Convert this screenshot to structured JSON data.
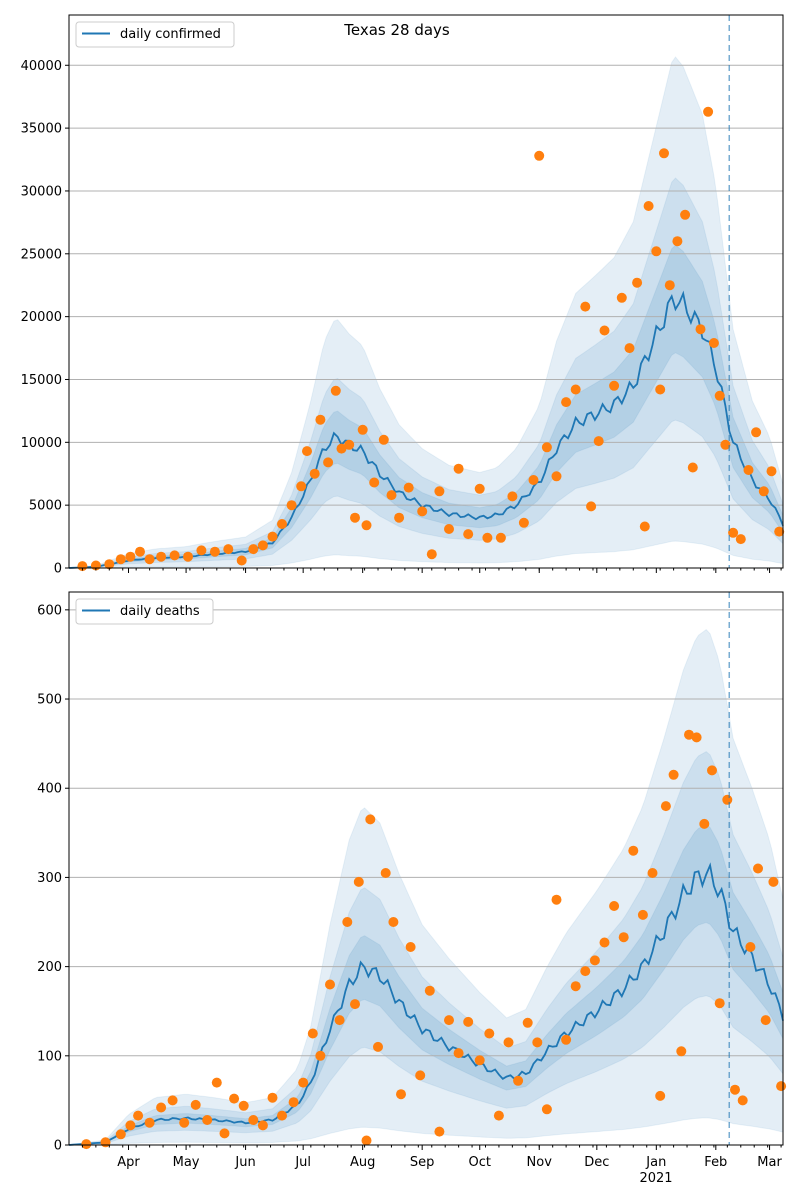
{
  "figure": {
    "title": "Texas 28 days",
    "x_year_label": "2021"
  },
  "chart_data": [
    {
      "type": "line",
      "title": "Texas 28 days",
      "xlabel": "",
      "ylabel": "",
      "xlim": [
        "2020-03-01",
        "2021-03-08"
      ],
      "ylim": [
        0,
        44000
      ],
      "yticks": [
        0,
        5000,
        10000,
        15000,
        20000,
        25000,
        30000,
        35000,
        40000
      ],
      "grid": "horizontal",
      "legend": "top-left",
      "vline_date": "2021-02-08",
      "colors": {
        "line": "#1f77b4",
        "points": "#ff7f0e",
        "band": "#1f77b4",
        "grid": "#b0b0b0"
      },
      "series": [
        {
          "name": "daily confirmed",
          "points": [
            [
              "2020-03-01",
              0
            ],
            [
              "2020-03-15",
              100
            ],
            [
              "2020-04-01",
              600
            ],
            [
              "2020-04-15",
              800
            ],
            [
              "2020-05-01",
              900
            ],
            [
              "2020-05-15",
              1100
            ],
            [
              "2020-06-01",
              1300
            ],
            [
              "2020-06-15",
              2000
            ],
            [
              "2020-06-25",
              4000
            ],
            [
              "2020-07-05",
              7000
            ],
            [
              "2020-07-12",
              9500
            ],
            [
              "2020-07-18",
              10500
            ],
            [
              "2020-07-25",
              9800
            ],
            [
              "2020-08-01",
              9300
            ],
            [
              "2020-08-10",
              7500
            ],
            [
              "2020-08-20",
              6000
            ],
            [
              "2020-09-01",
              5000
            ],
            [
              "2020-09-15",
              4300
            ],
            [
              "2020-10-01",
              4000
            ],
            [
              "2020-10-10",
              4200
            ],
            [
              "2020-10-20",
              5000
            ],
            [
              "2020-11-01",
              6800
            ],
            [
              "2020-11-10",
              9500
            ],
            [
              "2020-11-20",
              11500
            ],
            [
              "2020-12-01",
              12300
            ],
            [
              "2020-12-10",
              13000
            ],
            [
              "2020-12-20",
              14500
            ],
            [
              "2021-01-01",
              18500
            ],
            [
              "2021-01-10",
              21500
            ],
            [
              "2021-01-15",
              21000
            ],
            [
              "2021-01-25",
              19000
            ],
            [
              "2021-02-01",
              16000
            ],
            [
              "2021-02-10",
              10000
            ],
            [
              "2021-02-20",
              7000
            ],
            [
              "2021-03-01",
              5500
            ],
            [
              "2021-03-08",
              3500
            ]
          ],
          "band_scale_inner": 0.2,
          "band_scale_mid": 0.45,
          "band_scale_outer": 0.9
        }
      ],
      "scatter": [
        [
          "2020-03-08",
          150
        ],
        [
          "2020-03-15",
          200
        ],
        [
          "2020-03-22",
          300
        ],
        [
          "2020-03-28",
          700
        ],
        [
          "2020-04-02",
          900
        ],
        [
          "2020-04-07",
          1300
        ],
        [
          "2020-04-12",
          700
        ],
        [
          "2020-04-18",
          900
        ],
        [
          "2020-04-25",
          1000
        ],
        [
          "2020-05-02",
          900
        ],
        [
          "2020-05-09",
          1400
        ],
        [
          "2020-05-16",
          1300
        ],
        [
          "2020-05-23",
          1500
        ],
        [
          "2020-05-30",
          600
        ],
        [
          "2020-06-05",
          1500
        ],
        [
          "2020-06-10",
          1800
        ],
        [
          "2020-06-15",
          2500
        ],
        [
          "2020-06-20",
          3500
        ],
        [
          "2020-06-25",
          5000
        ],
        [
          "2020-06-30",
          6500
        ],
        [
          "2020-07-03",
          9300
        ],
        [
          "2020-07-07",
          7500
        ],
        [
          "2020-07-10",
          11800
        ],
        [
          "2020-07-14",
          8400
        ],
        [
          "2020-07-18",
          14100
        ],
        [
          "2020-07-21",
          9500
        ],
        [
          "2020-07-25",
          9800
        ],
        [
          "2020-07-28",
          4000
        ],
        [
          "2020-08-01",
          11000
        ],
        [
          "2020-08-03",
          3400
        ],
        [
          "2020-08-07",
          6800
        ],
        [
          "2020-08-12",
          10200
        ],
        [
          "2020-08-16",
          5800
        ],
        [
          "2020-08-20",
          4000
        ],
        [
          "2020-08-25",
          6400
        ],
        [
          "2020-09-01",
          4500
        ],
        [
          "2020-09-06",
          1100
        ],
        [
          "2020-09-10",
          6100
        ],
        [
          "2020-09-15",
          3100
        ],
        [
          "2020-09-20",
          7900
        ],
        [
          "2020-09-25",
          2700
        ],
        [
          "2020-10-01",
          6300
        ],
        [
          "2020-10-05",
          2400
        ],
        [
          "2020-10-12",
          2400
        ],
        [
          "2020-10-18",
          5700
        ],
        [
          "2020-10-24",
          3600
        ],
        [
          "2020-10-29",
          7000
        ],
        [
          "2020-11-01",
          32800
        ],
        [
          "2020-11-05",
          9600
        ],
        [
          "2020-11-10",
          7300
        ],
        [
          "2020-11-15",
          13200
        ],
        [
          "2020-11-20",
          14200
        ],
        [
          "2020-11-25",
          20800
        ],
        [
          "2020-11-28",
          4900
        ],
        [
          "2020-12-02",
          10100
        ],
        [
          "2020-12-05",
          18900
        ],
        [
          "2020-12-10",
          14500
        ],
        [
          "2020-12-14",
          21500
        ],
        [
          "2020-12-18",
          17500
        ],
        [
          "2020-12-22",
          22700
        ],
        [
          "2020-12-26",
          3300
        ],
        [
          "2020-12-28",
          28800
        ],
        [
          "2021-01-01",
          25200
        ],
        [
          "2021-01-03",
          14200
        ],
        [
          "2021-01-05",
          33000
        ],
        [
          "2021-01-08",
          22500
        ],
        [
          "2021-01-12",
          26000
        ],
        [
          "2021-01-16",
          28100
        ],
        [
          "2021-01-20",
          8000
        ],
        [
          "2021-01-24",
          19000
        ],
        [
          "2021-01-28",
          36300
        ],
        [
          "2021-01-31",
          17900
        ],
        [
          "2021-02-03",
          13700
        ],
        [
          "2021-02-06",
          9800
        ],
        [
          "2021-02-10",
          2800
        ],
        [
          "2021-02-14",
          2300
        ],
        [
          "2021-02-18",
          7800
        ],
        [
          "2021-02-22",
          10800
        ],
        [
          "2021-02-26",
          6100
        ],
        [
          "2021-03-02",
          7700
        ],
        [
          "2021-03-06",
          2900
        ]
      ]
    },
    {
      "type": "line",
      "title": "",
      "xlabel": "",
      "ylabel": "",
      "xlim": [
        "2020-03-01",
        "2021-03-08"
      ],
      "ylim": [
        0,
        620
      ],
      "yticks": [
        0,
        100,
        200,
        300,
        400,
        500,
        600
      ],
      "grid": "horizontal",
      "legend": "top-left",
      "vline_date": "2021-02-08",
      "colors": {
        "line": "#1f77b4",
        "points": "#ff7f0e",
        "band": "#1f77b4",
        "grid": "#b0b0b0"
      },
      "series": [
        {
          "name": "daily deaths",
          "points": [
            [
              "2020-03-01",
              0
            ],
            [
              "2020-03-20",
              3
            ],
            [
              "2020-04-01",
              18
            ],
            [
              "2020-04-15",
              28
            ],
            [
              "2020-05-01",
              30
            ],
            [
              "2020-05-15",
              28
            ],
            [
              "2020-06-01",
              25
            ],
            [
              "2020-06-15",
              28
            ],
            [
              "2020-06-28",
              45
            ],
            [
              "2020-07-05",
              70
            ],
            [
              "2020-07-15",
              130
            ],
            [
              "2020-07-25",
              180
            ],
            [
              "2020-08-01",
              200
            ],
            [
              "2020-08-10",
              190
            ],
            [
              "2020-08-20",
              160
            ],
            [
              "2020-09-01",
              130
            ],
            [
              "2020-09-15",
              110
            ],
            [
              "2020-10-01",
              90
            ],
            [
              "2020-10-15",
              75
            ],
            [
              "2020-10-25",
              80
            ],
            [
              "2020-11-05",
              105
            ],
            [
              "2020-11-15",
              125
            ],
            [
              "2020-12-01",
              150
            ],
            [
              "2020-12-15",
              175
            ],
            [
              "2020-12-25",
              200
            ],
            [
              "2021-01-05",
              240
            ],
            [
              "2021-01-15",
              280
            ],
            [
              "2021-01-22",
              300
            ],
            [
              "2021-01-28",
              305
            ],
            [
              "2021-02-03",
              285
            ],
            [
              "2021-02-10",
              240
            ],
            [
              "2021-02-20",
              210
            ],
            [
              "2021-03-01",
              180
            ],
            [
              "2021-03-08",
              145
            ]
          ],
          "band_scale_inner": 0.18,
          "band_scale_mid": 0.45,
          "band_scale_outer": 0.9
        }
      ],
      "scatter": [
        [
          "2020-03-10",
          1
        ],
        [
          "2020-03-20",
          3
        ],
        [
          "2020-03-28",
          12
        ],
        [
          "2020-04-02",
          22
        ],
        [
          "2020-04-06",
          33
        ],
        [
          "2020-04-12",
          25
        ],
        [
          "2020-04-18",
          42
        ],
        [
          "2020-04-24",
          50
        ],
        [
          "2020-04-30",
          25
        ],
        [
          "2020-05-06",
          45
        ],
        [
          "2020-05-12",
          28
        ],
        [
          "2020-05-17",
          70
        ],
        [
          "2020-05-21",
          13
        ],
        [
          "2020-05-26",
          52
        ],
        [
          "2020-05-31",
          44
        ],
        [
          "2020-06-05",
          28
        ],
        [
          "2020-06-10",
          22
        ],
        [
          "2020-06-15",
          53
        ],
        [
          "2020-06-20",
          33
        ],
        [
          "2020-06-26",
          48
        ],
        [
          "2020-07-01",
          70
        ],
        [
          "2020-07-06",
          125
        ],
        [
          "2020-07-10",
          100
        ],
        [
          "2020-07-15",
          180
        ],
        [
          "2020-07-20",
          140
        ],
        [
          "2020-07-24",
          250
        ],
        [
          "2020-07-28",
          158
        ],
        [
          "2020-07-30",
          295
        ],
        [
          "2020-08-03",
          5
        ],
        [
          "2020-08-05",
          365
        ],
        [
          "2020-08-09",
          110
        ],
        [
          "2020-08-13",
          305
        ],
        [
          "2020-08-17",
          250
        ],
        [
          "2020-08-21",
          57
        ],
        [
          "2020-08-26",
          222
        ],
        [
          "2020-08-31",
          78
        ],
        [
          "2020-09-05",
          173
        ],
        [
          "2020-09-10",
          15
        ],
        [
          "2020-09-15",
          140
        ],
        [
          "2020-09-20",
          103
        ],
        [
          "2020-09-25",
          138
        ],
        [
          "2020-10-01",
          95
        ],
        [
          "2020-10-06",
          125
        ],
        [
          "2020-10-11",
          33
        ],
        [
          "2020-10-16",
          115
        ],
        [
          "2020-10-21",
          72
        ],
        [
          "2020-10-26",
          137
        ],
        [
          "2020-10-31",
          115
        ],
        [
          "2020-11-05",
          40
        ],
        [
          "2020-11-10",
          275
        ],
        [
          "2020-11-15",
          118
        ],
        [
          "2020-11-20",
          178
        ],
        [
          "2020-11-25",
          195
        ],
        [
          "2020-11-30",
          207
        ],
        [
          "2020-12-05",
          227
        ],
        [
          "2020-12-10",
          268
        ],
        [
          "2020-12-15",
          233
        ],
        [
          "2020-12-20",
          330
        ],
        [
          "2020-12-25",
          258
        ],
        [
          "2020-12-30",
          305
        ],
        [
          "2021-01-03",
          55
        ],
        [
          "2021-01-06",
          380
        ],
        [
          "2021-01-10",
          415
        ],
        [
          "2021-01-14",
          105
        ],
        [
          "2021-01-18",
          460
        ],
        [
          "2021-01-22",
          457
        ],
        [
          "2021-01-26",
          360
        ],
        [
          "2021-01-30",
          420
        ],
        [
          "2021-02-03",
          159
        ],
        [
          "2021-02-07",
          387
        ],
        [
          "2021-02-11",
          62
        ],
        [
          "2021-02-15",
          50
        ],
        [
          "2021-02-19",
          222
        ],
        [
          "2021-02-23",
          310
        ],
        [
          "2021-02-27",
          140
        ],
        [
          "2021-03-03",
          295
        ],
        [
          "2021-03-07",
          66
        ]
      ]
    }
  ]
}
